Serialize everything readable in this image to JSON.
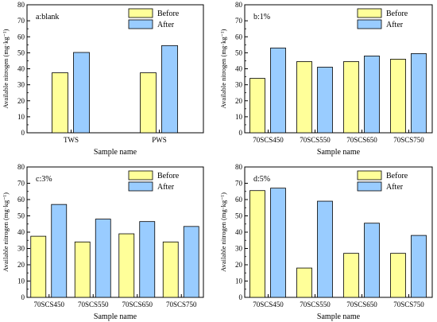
{
  "colors": {
    "before": "#ffff99",
    "after": "#99ccff",
    "stroke": "#000000"
  },
  "chart_data": [
    {
      "type": "bar",
      "panel_label": "a:blank",
      "categories": [
        "TWS",
        "PWS"
      ],
      "series": [
        {
          "name": "Before",
          "values": [
            37.5,
            37.5
          ]
        },
        {
          "name": "After",
          "values": [
            50.2,
            54.5
          ]
        }
      ],
      "xlabel": "Sample name",
      "ylabel": "Available nitrogen (mg·kg⁻¹)",
      "ylim": [
        0,
        80
      ],
      "yticks": [
        0,
        10,
        20,
        30,
        40,
        50,
        60,
        70,
        80
      ],
      "legend": "top-right",
      "grid": false
    },
    {
      "type": "bar",
      "panel_label": "b:1%",
      "categories": [
        "70SCS450",
        "70SCS550",
        "70SCS650",
        "70SCS750"
      ],
      "series": [
        {
          "name": "Before",
          "values": [
            34,
            44.5,
            44.5,
            46
          ]
        },
        {
          "name": "After",
          "values": [
            53,
            41,
            48,
            49.5
          ]
        }
      ],
      "xlabel": "Sample name",
      "ylabel": "Available nitrogen (mg·kg⁻¹)",
      "ylim": [
        0,
        80
      ],
      "yticks": [
        0,
        10,
        20,
        30,
        40,
        50,
        60,
        70,
        80
      ],
      "legend": "top-right",
      "grid": false
    },
    {
      "type": "bar",
      "panel_label": "c:3%",
      "categories": [
        "70SCS450",
        "70SCS550",
        "70SCS650",
        "70SCS750"
      ],
      "series": [
        {
          "name": "Before",
          "values": [
            37.5,
            34,
            39,
            34
          ]
        },
        {
          "name": "After",
          "values": [
            57,
            48,
            46.5,
            43.5
          ]
        }
      ],
      "xlabel": "Sample name",
      "ylabel": "Available nitrogen (mg·kg⁻¹)",
      "ylim": [
        0,
        80
      ],
      "yticks": [
        0,
        10,
        20,
        30,
        40,
        50,
        60,
        70,
        80
      ],
      "legend": "top-right",
      "grid": false
    },
    {
      "type": "bar",
      "panel_label": "d:5%",
      "categories": [
        "70SCS450",
        "70SCS550",
        "70SCS650",
        "70SCS750"
      ],
      "series": [
        {
          "name": "Before",
          "values": [
            65.5,
            18,
            27,
            27
          ]
        },
        {
          "name": "After",
          "values": [
            67,
            59,
            45.5,
            38
          ]
        }
      ],
      "xlabel": "Sample name",
      "ylabel": "Available nitrogen (mg·kg⁻¹)",
      "ylim": [
        0,
        80
      ],
      "yticks": [
        0,
        10,
        20,
        30,
        40,
        50,
        60,
        70,
        80
      ],
      "legend": "top-right",
      "grid": false
    }
  ]
}
